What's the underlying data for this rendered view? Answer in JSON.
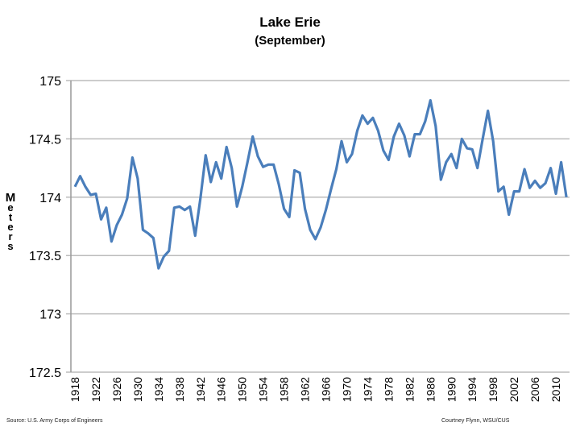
{
  "chart_data": {
    "type": "line",
    "title": "Lake Erie",
    "subtitle": "(September)",
    "ylabel": "Meters",
    "xlabel": "",
    "ylim": [
      172.5,
      175
    ],
    "yticks": [
      "172.5",
      "173",
      "173.5",
      "174",
      "174.5",
      "175"
    ],
    "xticks": [
      "1918",
      "1922",
      "1926",
      "1930",
      "1934",
      "1938",
      "1942",
      "1946",
      "1950",
      "1954",
      "1958",
      "1962",
      "1966",
      "1970",
      "1974",
      "1978",
      "1982",
      "1986",
      "1990",
      "1994",
      "1998",
      "2002",
      "2006",
      "2010"
    ],
    "grid": true,
    "color": "#4a7ebb",
    "x": [
      1918,
      1919,
      1920,
      1921,
      1922,
      1923,
      1924,
      1925,
      1926,
      1927,
      1928,
      1929,
      1930,
      1931,
      1932,
      1933,
      1934,
      1935,
      1936,
      1937,
      1938,
      1939,
      1940,
      1941,
      1942,
      1943,
      1944,
      1945,
      1946,
      1947,
      1948,
      1949,
      1950,
      1951,
      1952,
      1953,
      1954,
      1955,
      1956,
      1957,
      1958,
      1959,
      1960,
      1961,
      1962,
      1963,
      1964,
      1965,
      1966,
      1967,
      1968,
      1969,
      1970,
      1971,
      1972,
      1973,
      1974,
      1975,
      1976,
      1977,
      1978,
      1979,
      1980,
      1981,
      1982,
      1983,
      1984,
      1985,
      1986,
      1987,
      1988,
      1989,
      1990,
      1991,
      1992,
      1993,
      1994,
      1995,
      1996,
      1997,
      1998,
      1999,
      2000,
      2001,
      2002,
      2003,
      2004,
      2005,
      2006,
      2007,
      2008,
      2009,
      2010,
      2011,
      2012
    ],
    "values": [
      174.09,
      174.18,
      174.09,
      174.02,
      174.03,
      173.81,
      173.91,
      173.62,
      173.76,
      173.85,
      173.99,
      174.34,
      174.16,
      173.72,
      173.69,
      173.65,
      173.39,
      173.49,
      173.54,
      173.91,
      173.92,
      173.89,
      173.92,
      173.67,
      173.99,
      174.36,
      174.13,
      174.3,
      174.16,
      174.43,
      174.25,
      173.92,
      174.09,
      174.3,
      174.52,
      174.35,
      174.26,
      174.28,
      174.28,
      174.11,
      173.9,
      173.83,
      174.23,
      174.21,
      173.9,
      173.72,
      173.64,
      173.74,
      173.89,
      174.07,
      174.24,
      174.48,
      174.3,
      174.37,
      174.57,
      174.7,
      174.63,
      174.68,
      174.57,
      174.4,
      174.32,
      174.52,
      174.63,
      174.53,
      174.35,
      174.54,
      174.54,
      174.65,
      174.83,
      174.61,
      174.15,
      174.3,
      174.37,
      174.25,
      174.5,
      174.42,
      174.41,
      174.25,
      174.5,
      174.74,
      174.48,
      174.05,
      174.09,
      173.85,
      174.05,
      174.05,
      174.24,
      174.08,
      174.14,
      174.08,
      174.12,
      174.25,
      174.03,
      174.3,
      174.0
    ]
  },
  "footer": {
    "source": "Source: U.S. Army Corps of Engineers",
    "credit": "Courtney Flynn, WSU/CUS"
  }
}
